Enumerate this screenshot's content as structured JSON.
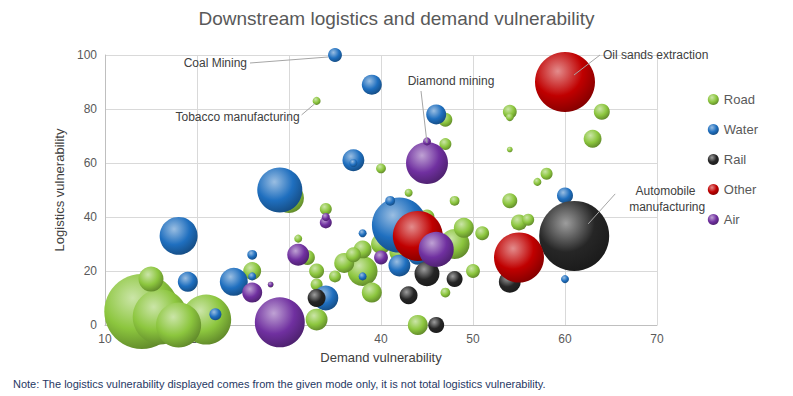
{
  "chart_data": {
    "type": "scatter",
    "title": "Downstream logistics and demand vulnerability",
    "x_label": "Demand vulnerability",
    "y_label": "Logistics vulnerability",
    "xlim": [
      10,
      70
    ],
    "xticks": [
      10,
      20,
      30,
      40,
      50,
      60,
      70
    ],
    "ylim": [
      0,
      100
    ],
    "yticks": [
      0,
      20,
      40,
      60,
      80,
      100
    ],
    "grid": true,
    "legend": "right",
    "series": [
      {
        "name": "Road",
        "color": "#8cc63e",
        "x": [
          14,
          21,
          16,
          18,
          30,
          38,
          48,
          15,
          33,
          36,
          39,
          40,
          42,
          44,
          49,
          26,
          63,
          38,
          55,
          64,
          32,
          33,
          37,
          45,
          54,
          47,
          50,
          51,
          54,
          33,
          34,
          47,
          56,
          58,
          35,
          40,
          31,
          48,
          47,
          56,
          33,
          43,
          46,
          54,
          57,
          31,
          54,
          28
        ],
        "values": [
          5,
          2,
          3,
          0,
          47,
          20,
          30,
          17,
          2,
          23,
          12,
          30,
          27,
          0,
          36,
          20,
          69,
          28,
          38,
          79,
          25,
          20,
          26,
          40,
          46,
          76,
          20,
          34,
          79,
          15,
          43,
          67,
          39,
          56,
          18,
          58,
          26,
          46,
          12,
          22,
          83,
          49,
          55,
          77,
          53,
          32,
          65,
          15
        ],
        "size": [
          352,
          156,
          189,
          127,
          56,
          56,
          56,
          39,
          30,
          25,
          25,
          25,
          25,
          25,
          25,
          20,
          20,
          20,
          16,
          16,
          14,
          14,
          14,
          14,
          14,
          12,
          12,
          12,
          12,
          9,
          9,
          9,
          9,
          9,
          9,
          6,
          6,
          6,
          6,
          6,
          4,
          4,
          4,
          4,
          4,
          4,
          2,
          2
        ]
      },
      {
        "name": "Water",
        "color": "#1f6fbf",
        "x": [
          42,
          29,
          18,
          24,
          34,
          37,
          42,
          19,
          39,
          46,
          44,
          60,
          35,
          22,
          26,
          41,
          26,
          38,
          38,
          60,
          37
        ],
        "values": [
          37,
          50,
          33,
          16,
          10,
          61,
          22,
          16,
          89,
          78,
          26,
          48,
          100,
          4,
          26,
          46,
          18,
          34,
          18,
          17,
          60
        ],
        "size": [
          189,
          127,
          90,
          49,
          39,
          30,
          30,
          25,
          25,
          25,
          25,
          16,
          12,
          9,
          6,
          6,
          4,
          4,
          4,
          4,
          4
        ]
      },
      {
        "name": "Rail",
        "color": "#262626",
        "x": [
          61,
          45,
          54,
          33,
          43,
          48,
          46
        ],
        "values": [
          33,
          19,
          16,
          10,
          11,
          17,
          0
        ],
        "size": [
          306,
          39,
          30,
          20,
          20,
          16,
          16
        ]
      },
      {
        "name": "Other",
        "color": "#c00000",
        "x": [
          60,
          44,
          55
        ],
        "values": [
          90,
          33,
          25
        ],
        "size": [
          225,
          156,
          156
        ]
      },
      {
        "name": "Air",
        "color": "#7030a0",
        "x": [
          29,
          45,
          46,
          31,
          26,
          40,
          34,
          45,
          34,
          28
        ],
        "values": [
          1,
          60,
          28,
          26,
          12,
          25,
          38,
          68,
          40,
          15
        ],
        "size": [
          156,
          110,
          77,
          30,
          25,
          12,
          9,
          4,
          4,
          2
        ]
      }
    ],
    "annotations": [
      {
        "text": "Coal Mining",
        "x": 35,
        "y": 100
      },
      {
        "text": "Tobacco manufacturing",
        "x": 33,
        "y": 83
      },
      {
        "text": "Diamond mining",
        "x": 45,
        "y": 60
      },
      {
        "text": "Oil sands extraction",
        "x": 60,
        "y": 90
      },
      {
        "text": "Automobile manufacturing",
        "x": 61,
        "y": 33
      }
    ],
    "note": "Note: The logistics vulnerability displayed comes from the given mode only, it is not total logistics vulnerability."
  }
}
